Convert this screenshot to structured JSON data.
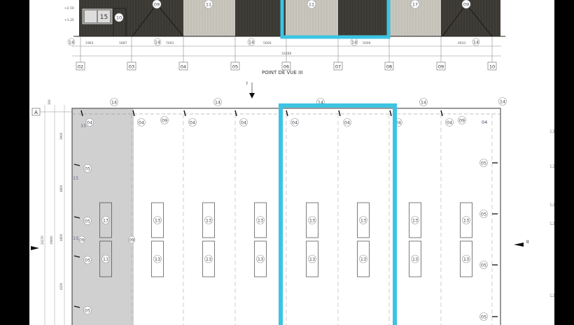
{
  "elevation": {
    "title": "POINT DE VUE III",
    "grid_labels": [
      "02",
      "03",
      "04",
      "05",
      "06",
      "07",
      "08",
      "09",
      "10"
    ],
    "bay_callouts": [
      "09",
      "11",
      "11",
      "17",
      "09"
    ],
    "door_label": "15",
    "door_callout": "10",
    "level_labels": [
      "+2.50",
      "+1.25"
    ],
    "dimension_labels": [
      "1963",
      "1687",
      "7001",
      "5000",
      "5000",
      "4631"
    ],
    "overall_dimension": "33260",
    "base_callout": "14"
  },
  "plan": {
    "grid_row_label": "A",
    "view_arrow_top": "I",
    "view_arrow_right": "II",
    "post_label": "13",
    "top_callouts": [
      "04",
      "09",
      "14",
      "05",
      "15"
    ],
    "left_dimensions": [
      "300",
      "3900",
      "4800",
      "4800",
      "4200"
    ],
    "overall_left_dimension": "20270",
    "overall_left_dimension_2": "19800",
    "edge_callout": "12"
  },
  "colors": {
    "highlight": "#3cc4e2",
    "dark_cladding": "#3a3833",
    "light_cladding": "#c9c7bd",
    "shaded_bay": "#d0d0d0"
  }
}
